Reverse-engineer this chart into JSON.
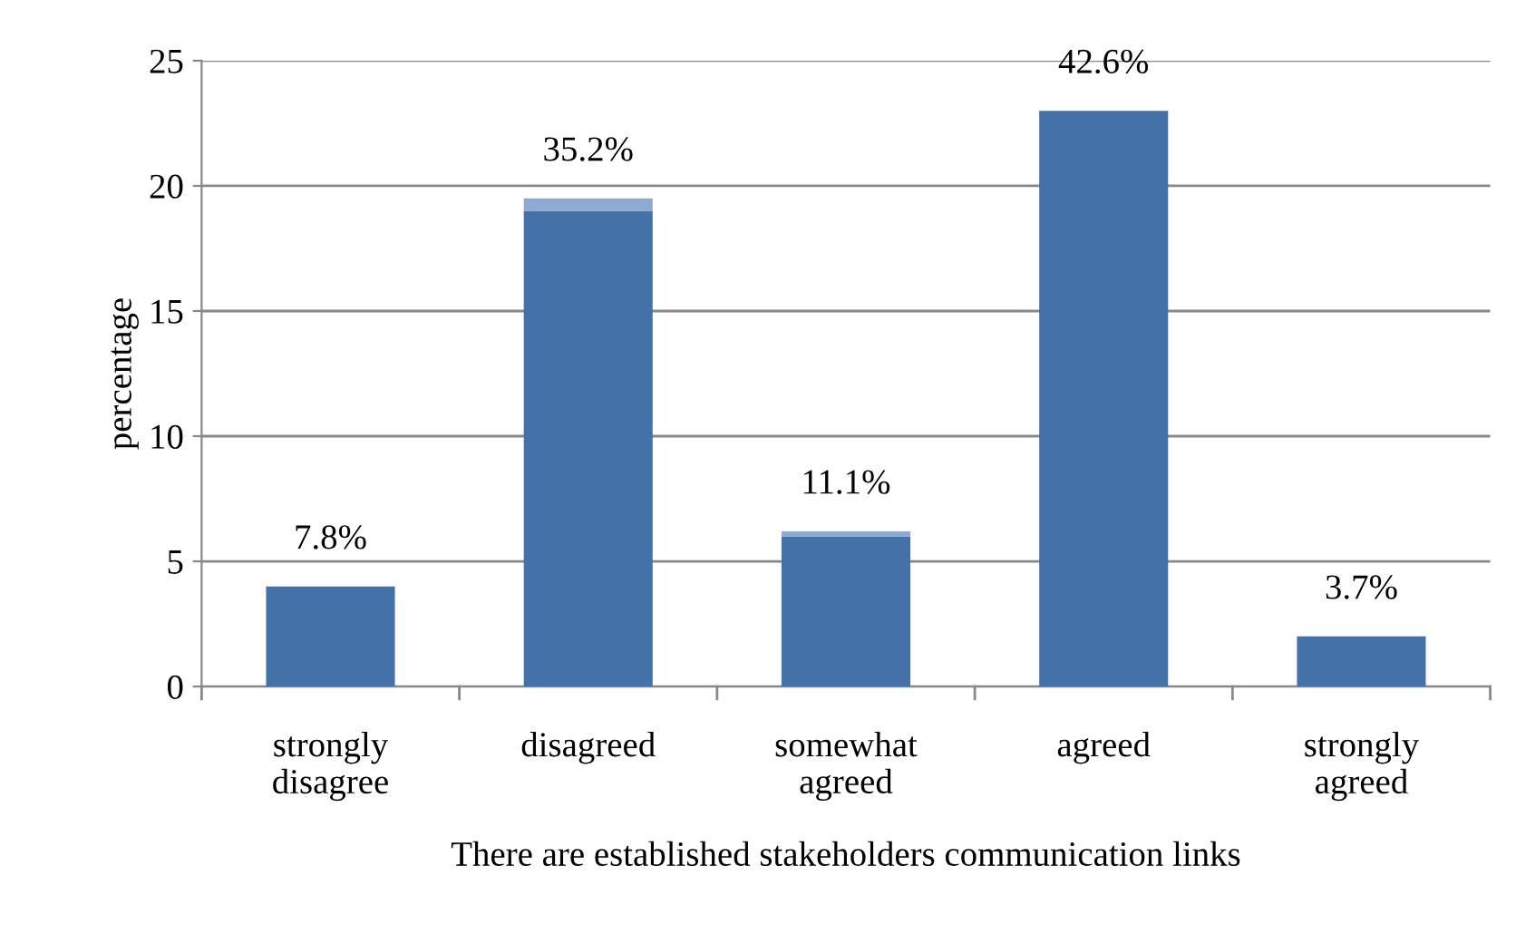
{
  "chart_data": {
    "type": "bar",
    "stacked": true,
    "categories": [
      "strongly\ndisagree",
      "disagreed",
      "somewhat\nagreed",
      "agreed",
      "strongly\nagreed"
    ],
    "series": [
      {
        "color": "#4472a8",
        "values": [
          4,
          19,
          6,
          23,
          2
        ]
      },
      {
        "color": "#8eaad2",
        "values": [
          null,
          0.5,
          0.2,
          null,
          null
        ]
      }
    ],
    "annotations": [
      {
        "text": "7.8%",
        "x": "strongly\ndisagree",
        "y": 4
      },
      {
        "text": "35.2%",
        "x": "disagreed",
        "y": 19.5
      },
      {
        "text": "11.1%",
        "x": "somewhat\nagreed",
        "y": 6.2
      },
      {
        "text": "42.6%",
        "x": "agreed",
        "y": 23
      },
      {
        "text": "3.7%",
        "x": "strongly\nagreed",
        "y": 2
      }
    ],
    "xlabel": "There are established stakeholders communication links",
    "ylabel": "percentage",
    "ylim": [
      0,
      25
    ],
    "yticks": [
      0,
      5,
      10,
      15,
      20,
      25
    ],
    "grid": "y",
    "legend": false
  }
}
